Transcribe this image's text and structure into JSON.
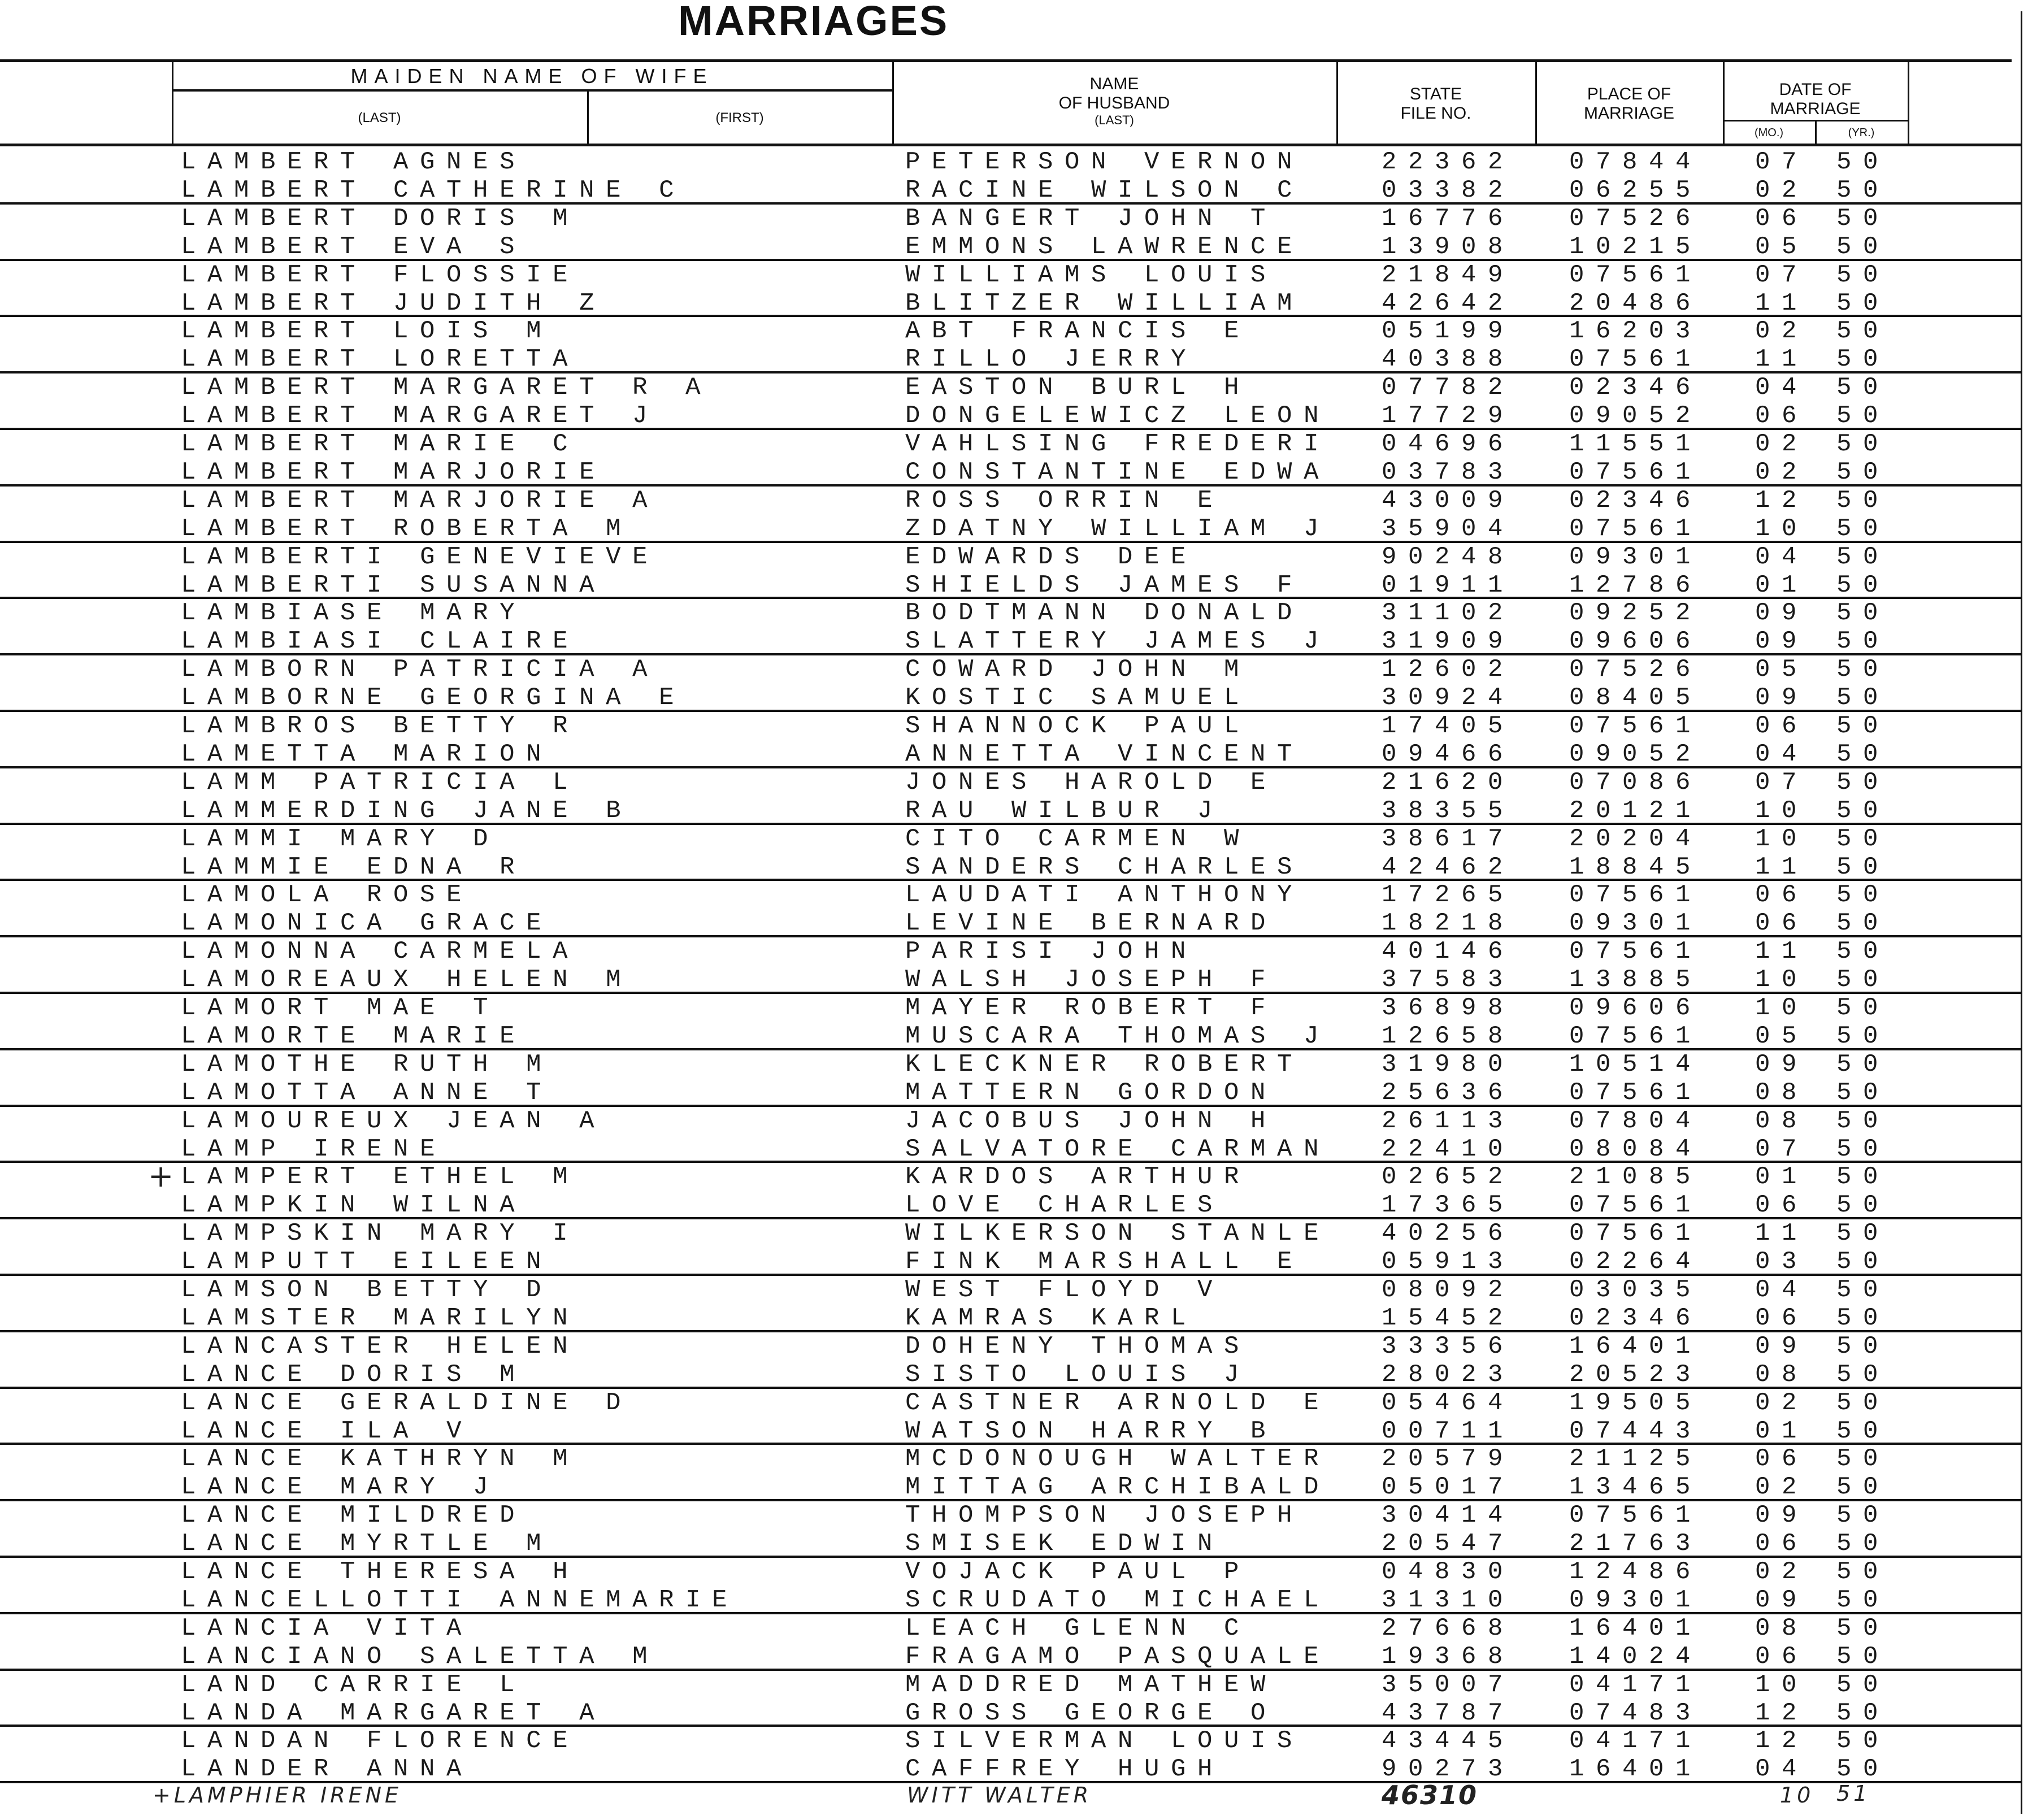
{
  "title": "MARRIAGES",
  "headers": {
    "maiden_name": "MAIDEN NAME OF WIFE",
    "last": "(LAST)",
    "first": "(FIRST)",
    "husband_line1": "NAME",
    "husband_line2": "OF HUSBAND",
    "husband_line3": "(LAST)",
    "file_line1": "STATE",
    "file_line2": "FILE NO.",
    "place_line1": "PLACE OF",
    "place_line2": "MARRIAGE",
    "date_line1": "DATE OF",
    "date_line2": "MARRIAGE",
    "mo": "(MO.)",
    "yr": "(YR.)"
  },
  "rows": [
    {
      "wife_last": "LAMBERT",
      "wife_first": "AGNES",
      "husband": "PETERSON VERNON",
      "file_no": "22362",
      "place": "07844",
      "mo": "07",
      "yr": "50"
    },
    {
      "wife_last": "LAMBERT",
      "wife_first": "CATHERINE C",
      "husband": "RACINE WILSON C",
      "file_no": "03382",
      "place": "06255",
      "mo": "02",
      "yr": "50"
    },
    {
      "wife_last": "LAMBERT",
      "wife_first": "DORIS M",
      "husband": "BANGERT JOHN T",
      "file_no": "16776",
      "place": "07526",
      "mo": "06",
      "yr": "50"
    },
    {
      "wife_last": "LAMBERT",
      "wife_first": "EVA S",
      "husband": "EMMONS LAWRENCE",
      "file_no": "13908",
      "place": "10215",
      "mo": "05",
      "yr": "50"
    },
    {
      "wife_last": "LAMBERT",
      "wife_first": "FLOSSIE",
      "husband": "WILLIAMS LOUIS",
      "file_no": "21849",
      "place": "07561",
      "mo": "07",
      "yr": "50"
    },
    {
      "wife_last": "LAMBERT",
      "wife_first": "JUDITH Z",
      "husband": "BLITZER WILLIAM",
      "file_no": "42642",
      "place": "20486",
      "mo": "11",
      "yr": "50"
    },
    {
      "wife_last": "LAMBERT",
      "wife_first": "LOIS M",
      "husband": "ABT FRANCIS E",
      "file_no": "05199",
      "place": "16203",
      "mo": "02",
      "yr": "50"
    },
    {
      "wife_last": "LAMBERT",
      "wife_first": "LORETTA",
      "husband": "RILLO JERRY",
      "file_no": "40388",
      "place": "07561",
      "mo": "11",
      "yr": "50"
    },
    {
      "wife_last": "LAMBERT",
      "wife_first": "MARGARET R A",
      "husband": "EASTON BURL H",
      "file_no": "07782",
      "place": "02346",
      "mo": "04",
      "yr": "50"
    },
    {
      "wife_last": "LAMBERT",
      "wife_first": "MARGARET J",
      "husband": "DONGELEWICZ LEON",
      "file_no": "17729",
      "place": "09052",
      "mo": "06",
      "yr": "50"
    },
    {
      "wife_last": "LAMBERT",
      "wife_first": "MARIE C",
      "husband": "VAHLSING FREDERI",
      "file_no": "04696",
      "place": "11551",
      "mo": "02",
      "yr": "50"
    },
    {
      "wife_last": "LAMBERT",
      "wife_first": "MARJORIE",
      "husband": "CONSTANTINE EDWA",
      "file_no": "03783",
      "place": "07561",
      "mo": "02",
      "yr": "50"
    },
    {
      "wife_last": "LAMBERT",
      "wife_first": "MARJORIE A",
      "husband": "ROSS ORRIN E",
      "file_no": "43009",
      "place": "02346",
      "mo": "12",
      "yr": "50"
    },
    {
      "wife_last": "LAMBERT",
      "wife_first": "ROBERTA M",
      "husband": "ZDATNY WILLIAM J",
      "file_no": "35904",
      "place": "07561",
      "mo": "10",
      "yr": "50"
    },
    {
      "wife_last": "LAMBERTI",
      "wife_first": "GENEVIEVE",
      "husband": "EDWARDS DEE",
      "file_no": "90248",
      "place": "09301",
      "mo": "04",
      "yr": "50"
    },
    {
      "wife_last": "LAMBERTI",
      "wife_first": "SUSANNA",
      "husband": "SHIELDS JAMES F",
      "file_no": "01911",
      "place": "12786",
      "mo": "01",
      "yr": "50"
    },
    {
      "wife_last": "LAMBIASE",
      "wife_first": "MARY",
      "husband": "BODTMANN DONALD",
      "file_no": "31102",
      "place": "09252",
      "mo": "09",
      "yr": "50"
    },
    {
      "wife_last": "LAMBIASI",
      "wife_first": "CLAIRE",
      "husband": "SLATTERY JAMES J",
      "file_no": "31909",
      "place": "09606",
      "mo": "09",
      "yr": "50"
    },
    {
      "wife_last": "LAMBORN",
      "wife_first": "PATRICIA A",
      "husband": "COWARD JOHN M",
      "file_no": "12602",
      "place": "07526",
      "mo": "05",
      "yr": "50"
    },
    {
      "wife_last": "LAMBORNE",
      "wife_first": "GEORGINA E",
      "husband": "KOSTIC SAMUEL",
      "file_no": "30924",
      "place": "08405",
      "mo": "09",
      "yr": "50"
    },
    {
      "wife_last": "LAMBROS",
      "wife_first": "BETTY R",
      "husband": "SHANNOCK PAUL",
      "file_no": "17405",
      "place": "07561",
      "mo": "06",
      "yr": "50"
    },
    {
      "wife_last": "LAMETTA",
      "wife_first": "MARION",
      "husband": "ANNETTA VINCENT",
      "file_no": "09466",
      "place": "09052",
      "mo": "04",
      "yr": "50"
    },
    {
      "wife_last": "LAMM",
      "wife_first": "PATRICIA L",
      "husband": "JONES HAROLD E",
      "file_no": "21620",
      "place": "07086",
      "mo": "07",
      "yr": "50"
    },
    {
      "wife_last": "LAMMERDING",
      "wife_first": "JANE B",
      "husband": "RAU WILBUR J",
      "file_no": "38355",
      "place": "20121",
      "mo": "10",
      "yr": "50"
    },
    {
      "wife_last": "LAMMI",
      "wife_first": "MARY D",
      "husband": "CITO CARMEN W",
      "file_no": "38617",
      "place": "20204",
      "mo": "10",
      "yr": "50"
    },
    {
      "wife_last": "LAMMIE",
      "wife_first": "EDNA R",
      "husband": "SANDERS CHARLES",
      "file_no": "42462",
      "place": "18845",
      "mo": "11",
      "yr": "50"
    },
    {
      "wife_last": "LAMOLA",
      "wife_first": "ROSE",
      "husband": "LAUDATI ANTHONY",
      "file_no": "17265",
      "place": "07561",
      "mo": "06",
      "yr": "50"
    },
    {
      "wife_last": "LAMONICA",
      "wife_first": "GRACE",
      "husband": "LEVINE BERNARD",
      "file_no": "18218",
      "place": "09301",
      "mo": "06",
      "yr": "50"
    },
    {
      "wife_last": "LAMONNA",
      "wife_first": "CARMELA",
      "husband": "PARISI JOHN",
      "file_no": "40146",
      "place": "07561",
      "mo": "11",
      "yr": "50"
    },
    {
      "wife_last": "LAMOREAUX",
      "wife_first": "HELEN M",
      "husband": "WALSH JOSEPH F",
      "file_no": "37583",
      "place": "13885",
      "mo": "10",
      "yr": "50"
    },
    {
      "wife_last": "LAMORT",
      "wife_first": "MAE T",
      "husband": "MAYER ROBERT F",
      "file_no": "36898",
      "place": "09606",
      "mo": "10",
      "yr": "50"
    },
    {
      "wife_last": "LAMORTE",
      "wife_first": "MARIE",
      "husband": "MUSCARA THOMAS J",
      "file_no": "12658",
      "place": "07561",
      "mo": "05",
      "yr": "50"
    },
    {
      "wife_last": "LAMOTHE",
      "wife_first": "RUTH M",
      "husband": "KLECKNER ROBERT",
      "file_no": "31980",
      "place": "10514",
      "mo": "09",
      "yr": "50"
    },
    {
      "wife_last": "LAMOTTA",
      "wife_first": "ANNE T",
      "husband": "MATTERN GORDON",
      "file_no": "25636",
      "place": "07561",
      "mo": "08",
      "yr": "50"
    },
    {
      "wife_last": "LAMOUREUX",
      "wife_first": "JEAN A",
      "husband": "JACOBUS JOHN H",
      "file_no": "26113",
      "place": "07804",
      "mo": "08",
      "yr": "50"
    },
    {
      "wife_last": "LAMP",
      "wife_first": "IRENE",
      "husband": "SALVATORE CARMAN",
      "file_no": "22410",
      "place": "08084",
      "mo": "07",
      "yr": "50"
    },
    {
      "wife_last": "LAMPERT",
      "wife_first": "ETHEL M",
      "husband": "KARDOS ARTHUR",
      "file_no": "02652",
      "place": "21085",
      "mo": "01",
      "yr": "50",
      "mark": "+"
    },
    {
      "wife_last": "LAMPKIN",
      "wife_first": "WILNA",
      "husband": "LOVE CHARLES",
      "file_no": "17365",
      "place": "07561",
      "mo": "06",
      "yr": "50"
    },
    {
      "wife_last": "LAMPSKIN",
      "wife_first": "MARY I",
      "husband": "WILKERSON STANLE",
      "file_no": "40256",
      "place": "07561",
      "mo": "11",
      "yr": "50"
    },
    {
      "wife_last": "LAMPUTT",
      "wife_first": "EILEEN",
      "husband": "FINK MARSHALL E",
      "file_no": "05913",
      "place": "02264",
      "mo": "03",
      "yr": "50"
    },
    {
      "wife_last": "LAMSON",
      "wife_first": "BETTY D",
      "husband": "WEST FLOYD V",
      "file_no": "08092",
      "place": "03035",
      "mo": "04",
      "yr": "50"
    },
    {
      "wife_last": "LAMSTER",
      "wife_first": "MARILYN",
      "husband": "KAMRAS KARL",
      "file_no": "15452",
      "place": "02346",
      "mo": "06",
      "yr": "50"
    },
    {
      "wife_last": "LANCASTER",
      "wife_first": "HELEN",
      "husband": "DOHENY THOMAS",
      "file_no": "33356",
      "place": "16401",
      "mo": "09",
      "yr": "50"
    },
    {
      "wife_last": "LANCE",
      "wife_first": "DORIS M",
      "husband": "SISTO LOUIS J",
      "file_no": "28023",
      "place": "20523",
      "mo": "08",
      "yr": "50"
    },
    {
      "wife_last": "LANCE",
      "wife_first": "GERALDINE D",
      "husband": "CASTNER ARNOLD E",
      "file_no": "05464",
      "place": "19505",
      "mo": "02",
      "yr": "50"
    },
    {
      "wife_last": "LANCE",
      "wife_first": "ILA V",
      "husband": "WATSON HARRY B",
      "file_no": "00711",
      "place": "07443",
      "mo": "01",
      "yr": "50"
    },
    {
      "wife_last": "LANCE",
      "wife_first": "KATHRYN M",
      "husband": "MCDONOUGH WALTER",
      "file_no": "20579",
      "place": "21125",
      "mo": "06",
      "yr": "50"
    },
    {
      "wife_last": "LANCE",
      "wife_first": "MARY J",
      "husband": "MITTAG ARCHIBALD",
      "file_no": "05017",
      "place": "13465",
      "mo": "02",
      "yr": "50"
    },
    {
      "wife_last": "LANCE",
      "wife_first": "MILDRED",
      "husband": "THOMPSON JOSEPH",
      "file_no": "30414",
      "place": "07561",
      "mo": "09",
      "yr": "50"
    },
    {
      "wife_last": "LANCE",
      "wife_first": "MYRTLE M",
      "husband": "SMISEK EDWIN",
      "file_no": "20547",
      "place": "21763",
      "mo": "06",
      "yr": "50"
    },
    {
      "wife_last": "LANCE",
      "wife_first": "THERESA H",
      "husband": "VOJACK PAUL P",
      "file_no": "04830",
      "place": "12486",
      "mo": "02",
      "yr": "50"
    },
    {
      "wife_last": "LANCELLOTTI",
      "wife_first": "ANNEMARIE",
      "husband": "SCRUDATO MICHAEL",
      "file_no": "31310",
      "place": "09301",
      "mo": "09",
      "yr": "50"
    },
    {
      "wife_last": "LANCIA",
      "wife_first": "VITA",
      "husband": "LEACH GLENN C",
      "file_no": "27668",
      "place": "16401",
      "mo": "08",
      "yr": "50"
    },
    {
      "wife_last": "LANCIANO",
      "wife_first": "SALETTA M",
      "husband": "FRAGAMO PASQUALE",
      "file_no": "19368",
      "place": "14024",
      "mo": "06",
      "yr": "50"
    },
    {
      "wife_last": "LAND",
      "wife_first": "CARRIE L",
      "husband": "MADDRED MATHEW",
      "file_no": "35007",
      "place": "04171",
      "mo": "10",
      "yr": "50"
    },
    {
      "wife_last": "LANDA",
      "wife_first": "MARGARET A",
      "husband": "GROSS GEORGE O",
      "file_no": "43787",
      "place": "07483",
      "mo": "12",
      "yr": "50"
    },
    {
      "wife_last": "LANDAN",
      "wife_first": "FLORENCE",
      "husband": "SILVERMAN LOUIS",
      "file_no": "43445",
      "place": "04171",
      "mo": "12",
      "yr": "50"
    },
    {
      "wife_last": "LANDER",
      "wife_first": "ANNA",
      "husband": "CAFFREY HUGH",
      "file_no": "90273",
      "place": "16401",
      "mo": "04",
      "yr": "50"
    }
  ],
  "handwritten_row": {
    "wife": "+LAMPHIER IRENE",
    "husband": "WITT WALTER",
    "file_no": "46310",
    "place": "",
    "mo": "10",
    "yr": "51"
  }
}
